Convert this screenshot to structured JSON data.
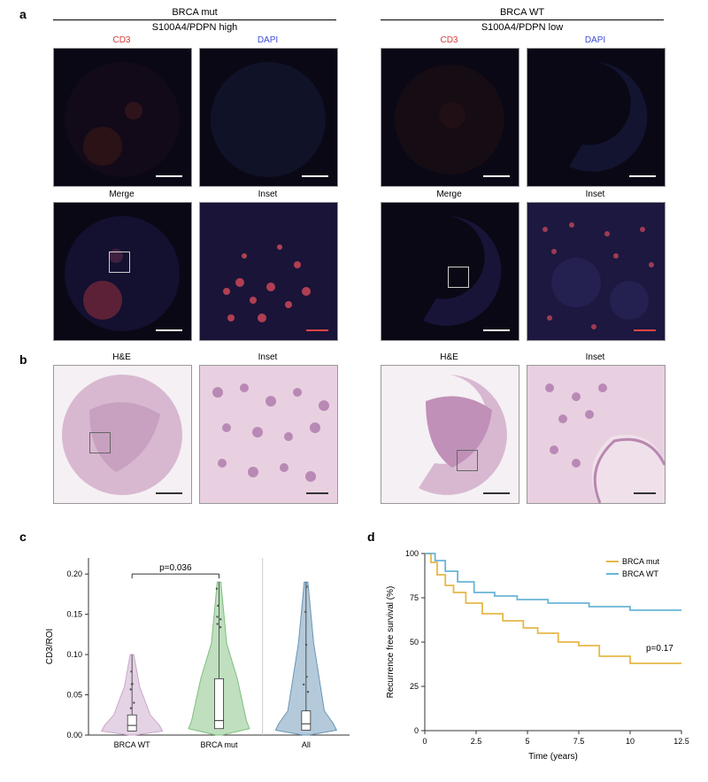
{
  "panels": {
    "a": "a",
    "b": "b",
    "c": "c",
    "d": "d"
  },
  "headers": {
    "left_group": "BRCA mut",
    "left_sub": "S100A4/PDPN high",
    "right_group": "BRCA WT",
    "right_sub": "S100A4/PDPN low"
  },
  "stains": {
    "cd3": "CD3",
    "dapi": "DAPI",
    "merge": "Merge",
    "inset": "Inset",
    "he": "H&E"
  },
  "stain_colors": {
    "cd3": "#d63a3a",
    "dapi": "#3a4ad6",
    "merge": "#000000",
    "inset": "#000000",
    "he": "#000000"
  },
  "violin": {
    "ylabel": "CD3/ROI",
    "ylim": [
      0,
      0.22
    ],
    "yticks": [
      0.0,
      0.05,
      0.1,
      0.15,
      0.2
    ],
    "groups": [
      "BRCA WT",
      "BRCA mut",
      "All"
    ],
    "colors": [
      "#caa7cc",
      "#7fbf7f",
      "#6a95b5"
    ],
    "medians": [
      0.012,
      0.018,
      0.014
    ],
    "q1": [
      0.005,
      0.008,
      0.006
    ],
    "q3": [
      0.025,
      0.07,
      0.03
    ],
    "max": [
      0.1,
      0.19,
      0.19
    ],
    "pval": "p=0.036",
    "pval_fontsize": 10,
    "axis_fontsize": 10,
    "tick_fontsize": 9
  },
  "km": {
    "ylabel": "Recurrence free survival (%)",
    "xlabel": "Time (years)",
    "xlim": [
      0,
      12.5
    ],
    "ylim": [
      0,
      100
    ],
    "xticks": [
      0,
      2.5,
      5,
      7.5,
      10,
      12.5
    ],
    "yticks": [
      0,
      25,
      50,
      75,
      100
    ],
    "legend": [
      "BRCA mut",
      "BRCA WT"
    ],
    "legend_colors": [
      "#e6b84a",
      "#6ab4d6"
    ],
    "pval": "p=0.17",
    "lines": {
      "BRCA mut": {
        "color": "#e6b84a",
        "points": [
          [
            0,
            100
          ],
          [
            0.3,
            95
          ],
          [
            0.6,
            88
          ],
          [
            1.0,
            82
          ],
          [
            1.4,
            78
          ],
          [
            2.0,
            72
          ],
          [
            2.8,
            66
          ],
          [
            3.8,
            62
          ],
          [
            4.8,
            58
          ],
          [
            5.5,
            55
          ],
          [
            6.5,
            50
          ],
          [
            7.5,
            48
          ],
          [
            8.5,
            42
          ],
          [
            10,
            38
          ],
          [
            12.5,
            38
          ]
        ]
      },
      "BRCA WT": {
        "color": "#6ab4d6",
        "points": [
          [
            0,
            100
          ],
          [
            0.5,
            96
          ],
          [
            1.0,
            90
          ],
          [
            1.6,
            84
          ],
          [
            2.4,
            78
          ],
          [
            3.4,
            76
          ],
          [
            4.5,
            74
          ],
          [
            6.0,
            72
          ],
          [
            8.0,
            70
          ],
          [
            10,
            68
          ],
          [
            12.5,
            68
          ]
        ]
      }
    },
    "axis_fontsize": 10,
    "tick_fontsize": 9
  }
}
